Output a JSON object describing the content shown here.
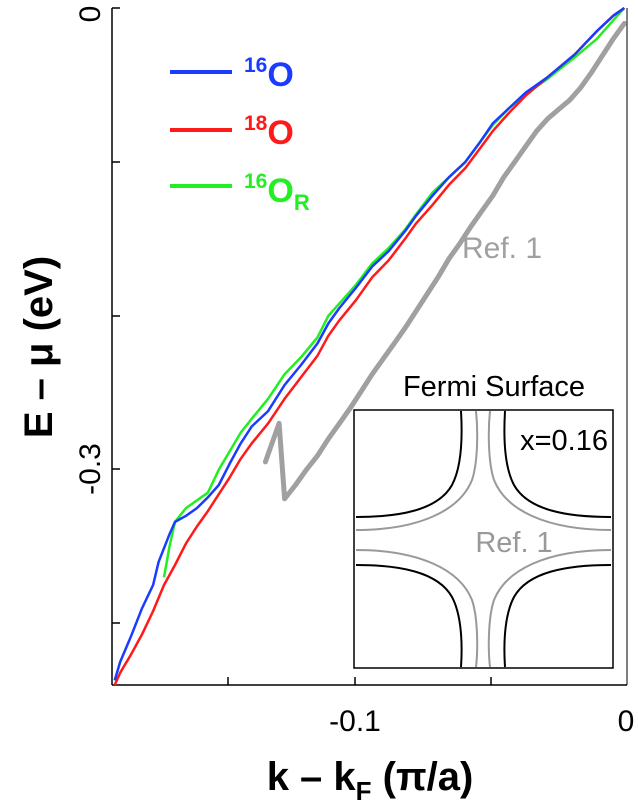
{
  "chart_data": {
    "type": "line",
    "title": "",
    "xlabel": "k – k",
    "xlabel_sub": "F",
    "xlabel_unit": " (π/a)",
    "ylabel": "E – μ (eV)",
    "xlim": [
      -0.187,
      0.001
    ],
    "ylim": [
      -0.44,
      0.0
    ],
    "x_tick_labels": [
      "-0.1",
      "0"
    ],
    "y_tick_labels": [
      "-0.3",
      "0"
    ],
    "series": [
      {
        "name": "16O",
        "label_sup": "16",
        "label_main": "O",
        "label_sub": "",
        "color": "#1a3cff",
        "x": [
          0.0,
          -0.004,
          -0.01,
          -0.018,
          -0.028,
          -0.036,
          -0.042,
          -0.048,
          -0.053,
          -0.058,
          -0.064,
          -0.07,
          -0.076,
          -0.08,
          -0.086,
          -0.092,
          -0.098,
          -0.104,
          -0.108,
          -0.112,
          -0.118,
          -0.124,
          -0.13,
          -0.136,
          -0.14,
          -0.144,
          -0.148,
          -0.152,
          -0.156,
          -0.16,
          -0.164,
          -0.166,
          -0.17,
          -0.172,
          -0.176,
          -0.18,
          -0.184,
          -0.186
        ],
        "y": [
          0.0,
          -0.005,
          -0.015,
          -0.03,
          -0.045,
          -0.055,
          -0.065,
          -0.075,
          -0.088,
          -0.1,
          -0.11,
          -0.122,
          -0.135,
          -0.145,
          -0.158,
          -0.168,
          -0.182,
          -0.195,
          -0.205,
          -0.218,
          -0.232,
          -0.245,
          -0.262,
          -0.272,
          -0.283,
          -0.296,
          -0.31,
          -0.318,
          -0.325,
          -0.33,
          -0.334,
          -0.342,
          -0.36,
          -0.375,
          -0.39,
          -0.408,
          -0.425,
          -0.437
        ]
      },
      {
        "name": "18O",
        "label_sup": "18",
        "label_main": "O",
        "label_sub": "",
        "color": "#ff1a1a",
        "x": [
          0.0,
          -0.004,
          -0.01,
          -0.018,
          -0.028,
          -0.036,
          -0.042,
          -0.048,
          -0.053,
          -0.058,
          -0.064,
          -0.07,
          -0.076,
          -0.08,
          -0.086,
          -0.092,
          -0.098,
          -0.104,
          -0.108,
          -0.112,
          -0.118,
          -0.124,
          -0.13,
          -0.136,
          -0.14,
          -0.144,
          -0.148,
          -0.152,
          -0.156,
          -0.16,
          -0.164,
          -0.168,
          -0.172,
          -0.176,
          -0.18,
          -0.184,
          -0.186
        ],
        "y": [
          0.0,
          -0.005,
          -0.015,
          -0.03,
          -0.045,
          -0.057,
          -0.068,
          -0.08,
          -0.092,
          -0.104,
          -0.115,
          -0.128,
          -0.14,
          -0.15,
          -0.164,
          -0.175,
          -0.19,
          -0.203,
          -0.213,
          -0.226,
          -0.24,
          -0.254,
          -0.27,
          -0.283,
          -0.293,
          -0.305,
          -0.316,
          -0.327,
          -0.337,
          -0.348,
          -0.362,
          -0.375,
          -0.392,
          -0.407,
          -0.42,
          -0.432,
          -0.44
        ]
      },
      {
        "name": "16OR",
        "label_sup": "16",
        "label_main": "O",
        "label_sub": "R",
        "color": "#22ee22",
        "x": [
          0.0,
          -0.004,
          -0.01,
          -0.018,
          -0.028,
          -0.036,
          -0.042,
          -0.048,
          -0.053,
          -0.058,
          -0.064,
          -0.07,
          -0.076,
          -0.08,
          -0.086,
          -0.092,
          -0.098,
          -0.104,
          -0.108,
          -0.112,
          -0.118,
          -0.124,
          -0.13,
          -0.136,
          -0.14,
          -0.144,
          -0.148,
          -0.152,
          -0.156,
          -0.16,
          -0.164,
          -0.166,
          -0.168
        ],
        "y": [
          0.0,
          -0.008,
          -0.02,
          -0.032,
          -0.046,
          -0.056,
          -0.065,
          -0.076,
          -0.088,
          -0.1,
          -0.11,
          -0.12,
          -0.134,
          -0.144,
          -0.156,
          -0.166,
          -0.18,
          -0.192,
          -0.2,
          -0.214,
          -0.227,
          -0.238,
          -0.254,
          -0.267,
          -0.276,
          -0.288,
          -0.3,
          -0.315,
          -0.32,
          -0.325,
          -0.334,
          -0.35,
          -0.37
        ]
      },
      {
        "name": "Ref. 1",
        "label_sup": "",
        "label_main": "Ref. 1",
        "label_sub": "",
        "color": "#a0a0a0",
        "x": [
          0.0,
          -0.004,
          -0.008,
          -0.012,
          -0.016,
          -0.02,
          -0.024,
          -0.028,
          -0.032,
          -0.036,
          -0.04,
          -0.044,
          -0.048,
          -0.052,
          -0.056,
          -0.06,
          -0.064,
          -0.068,
          -0.072,
          -0.076,
          -0.08,
          -0.084,
          -0.088,
          -0.092,
          -0.096,
          -0.1,
          -0.104,
          -0.108,
          -0.112,
          -0.116,
          -0.12,
          -0.124,
          -0.126,
          -0.128,
          -0.13,
          -0.131
        ],
        "y": [
          -0.01,
          -0.02,
          -0.031,
          -0.042,
          -0.052,
          -0.06,
          -0.066,
          -0.072,
          -0.08,
          -0.09,
          -0.1,
          -0.11,
          -0.122,
          -0.132,
          -0.142,
          -0.153,
          -0.163,
          -0.175,
          -0.186,
          -0.197,
          -0.208,
          -0.218,
          -0.228,
          -0.238,
          -0.249,
          -0.26,
          -0.27,
          -0.28,
          -0.291,
          -0.3,
          -0.31,
          -0.319,
          -0.27,
          -0.28,
          -0.29,
          -0.295
        ]
      }
    ],
    "annotations": {
      "ref_label": "Ref. 1"
    },
    "inset": {
      "title": "Fermi Surface",
      "doping_label": "x=0.16",
      "ref_label": "Ref. 1",
      "curve_colors": {
        "sample": "#000000",
        "reference": "#999999"
      }
    }
  }
}
